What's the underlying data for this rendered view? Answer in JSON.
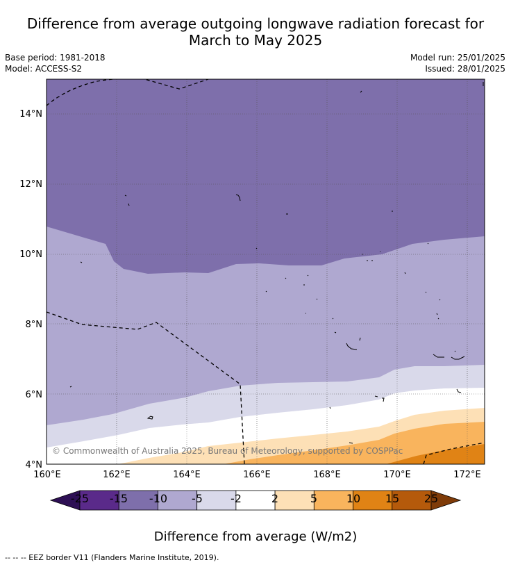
{
  "title": {
    "line1": "Difference from average outgoing longwave radiation forecast for",
    "line2": "March to May 2025"
  },
  "meta": {
    "base_period": "Base period: 1981-2018",
    "model": "Model: ACCESS-S2",
    "model_run": "Model run: 25/01/2025",
    "issued": "Issued: 28/01/2025"
  },
  "map": {
    "lat_labels": [
      "14°N",
      "12°N",
      "10°N",
      "8°N",
      "6°N",
      "4°N"
    ],
    "lon_labels": [
      "160°E",
      "162°E",
      "164°E",
      "166°E",
      "168°E",
      "170°E",
      "172°E"
    ],
    "copyright": "© Commonwealth of Australia 2025, Bureau of Meteorology, supported by COSPPac"
  },
  "colorbar": {
    "ticks": [
      "-25",
      "-15",
      "-10",
      "-5",
      "-2",
      "2",
      "5",
      "10",
      "15",
      "25"
    ],
    "colors": [
      "#5a2a8a",
      "#7e6fab",
      "#afa8d0",
      "#d9d9ea",
      "#ffffff",
      "#fde0b6",
      "#f9b45d",
      "#e08315",
      "#b55a0b"
    ],
    "low_color": "#2d0f54",
    "high_color": "#7f3b08",
    "title": "Difference from average (W/m2)"
  },
  "footnote": "--  --  -- EEZ border V11 (Flanders Marine Institute, 2019)."
}
